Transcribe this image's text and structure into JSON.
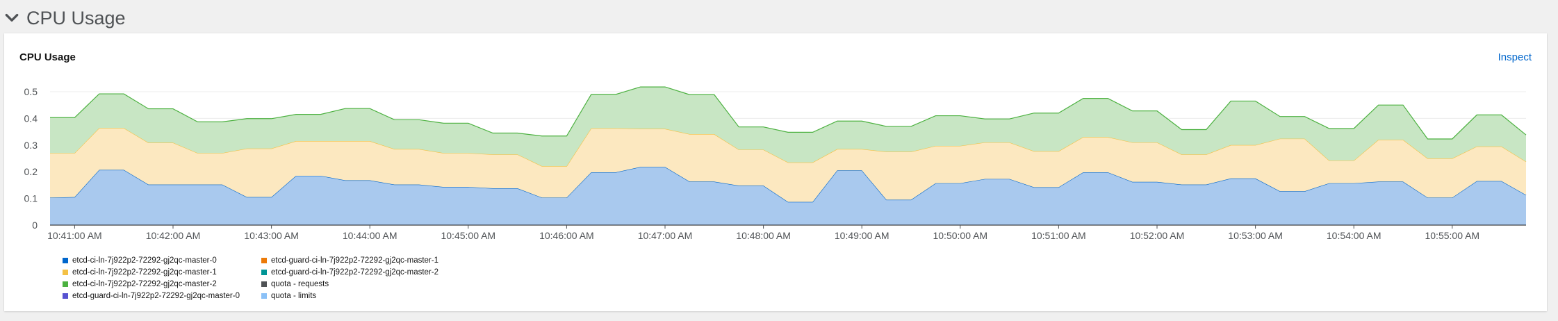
{
  "section": {
    "title": "CPU Usage",
    "icon": "chevron-down-icon"
  },
  "card": {
    "title": "CPU Usage",
    "inspect_label": "Inspect"
  },
  "legend": [
    {
      "label": "etcd-ci-ln-7j922p2-72292-gj2qc-master-0",
      "color": "#0066cc"
    },
    {
      "label": "etcd-guard-ci-ln-7j922p2-72292-gj2qc-master-1",
      "color": "#ec7a08"
    },
    {
      "label": "etcd-ci-ln-7j922p2-72292-gj2qc-master-1",
      "color": "#f4c145"
    },
    {
      "label": "etcd-guard-ci-ln-7j922p2-72292-gj2qc-master-2",
      "color": "#009596"
    },
    {
      "label": "etcd-ci-ln-7j922p2-72292-gj2qc-master-2",
      "color": "#4cb140"
    },
    {
      "label": "quota - requests",
      "color": "#4f5255"
    },
    {
      "label": "etcd-guard-ci-ln-7j922p2-72292-gj2qc-master-0",
      "color": "#5752d1"
    },
    {
      "label": "quota - limits",
      "color": "#8bc1f7"
    }
  ],
  "chart_data": {
    "type": "area",
    "stacked": true,
    "title": "CPU Usage",
    "ylim": [
      0,
      0.5
    ],
    "yticks": [
      0,
      0.1,
      0.2,
      0.3,
      0.4,
      0.5
    ],
    "ytick_labels": [
      "0",
      "0.1",
      "0.2",
      "0.3",
      "0.4",
      "0.5"
    ],
    "xlim": [
      "10:40:45",
      "10:55:45"
    ],
    "xticks": [
      "10:41:00",
      "10:42:00",
      "10:43:00",
      "10:44:00",
      "10:45:00",
      "10:46:00",
      "10:47:00",
      "10:48:00",
      "10:49:00",
      "10:50:00",
      "10:51:00",
      "10:52:00",
      "10:53:00",
      "10:54:00",
      "10:55:00"
    ],
    "xtick_labels": [
      "10:41:00 AM",
      "10:42:00 AM",
      "10:43:00 AM",
      "10:44:00 AM",
      "10:45:00 AM",
      "10:46:00 AM",
      "10:47:00 AM",
      "10:48:00 AM",
      "10:49:00 AM",
      "10:50:00 AM",
      "10:51:00 AM",
      "10:52:00 AM",
      "10:53:00 AM",
      "10:54:00 AM",
      "10:55:00 AM"
    ],
    "x": [
      "10:40:45",
      "10:41:00",
      "10:41:15",
      "10:41:30",
      "10:41:45",
      "10:42:00",
      "10:42:15",
      "10:42:30",
      "10:42:45",
      "10:43:00",
      "10:43:15",
      "10:43:30",
      "10:43:45",
      "10:44:00",
      "10:44:15",
      "10:44:30",
      "10:44:45",
      "10:45:00",
      "10:45:15",
      "10:45:30",
      "10:45:45",
      "10:46:00",
      "10:46:15",
      "10:46:30",
      "10:46:45",
      "10:47:00",
      "10:47:15",
      "10:47:30",
      "10:47:45",
      "10:48:00",
      "10:48:15",
      "10:48:30",
      "10:48:45",
      "10:49:00",
      "10:49:15",
      "10:49:30",
      "10:49:45",
      "10:50:00",
      "10:50:15",
      "10:50:30",
      "10:50:45",
      "10:51:00",
      "10:51:15",
      "10:51:30",
      "10:51:45",
      "10:52:00",
      "10:52:15",
      "10:52:30",
      "10:52:45",
      "10:53:00",
      "10:53:15",
      "10:53:30",
      "10:53:45",
      "10:54:00",
      "10:54:15",
      "10:54:30",
      "10:54:45",
      "10:55:00",
      "10:55:15",
      "10:55:30",
      "10:55:45"
    ],
    "series": [
      {
        "name": "etcd-ci-ln-7j922p2-72292-gj2qc-master-0",
        "color": "#0066cc",
        "fill": "#a9c9ee",
        "values": [
          0.103,
          0.105,
          0.207,
          0.207,
          0.152,
          0.152,
          0.152,
          0.152,
          0.105,
          0.105,
          0.185,
          0.185,
          0.168,
          0.168,
          0.152,
          0.152,
          0.143,
          0.143,
          0.138,
          0.138,
          0.103,
          0.103,
          0.198,
          0.198,
          0.218,
          0.218,
          0.163,
          0.163,
          0.148,
          0.148,
          0.087,
          0.087,
          0.205,
          0.205,
          0.095,
          0.095,
          0.157,
          0.157,
          0.173,
          0.173,
          0.142,
          0.142,
          0.198,
          0.198,
          0.162,
          0.162,
          0.152,
          0.152,
          0.175,
          0.175,
          0.127,
          0.127,
          0.157,
          0.157,
          0.163,
          0.163,
          0.103,
          0.103,
          0.165,
          0.165,
          0.113
        ]
      },
      {
        "name": "etcd-ci-ln-7j922p2-72292-gj2qc-master-1",
        "color": "#f4c145",
        "fill": "#fce8c0",
        "values": [
          0.167,
          0.165,
          0.157,
          0.157,
          0.157,
          0.157,
          0.118,
          0.118,
          0.182,
          0.182,
          0.13,
          0.13,
          0.147,
          0.147,
          0.133,
          0.133,
          0.127,
          0.127,
          0.127,
          0.127,
          0.118,
          0.118,
          0.165,
          0.165,
          0.143,
          0.143,
          0.178,
          0.178,
          0.135,
          0.135,
          0.148,
          0.148,
          0.08,
          0.08,
          0.18,
          0.18,
          0.14,
          0.14,
          0.137,
          0.137,
          0.135,
          0.135,
          0.132,
          0.132,
          0.148,
          0.148,
          0.113,
          0.113,
          0.125,
          0.125,
          0.197,
          0.197,
          0.085,
          0.085,
          0.157,
          0.157,
          0.147,
          0.147,
          0.13,
          0.13,
          0.125
        ]
      },
      {
        "name": "etcd-ci-ln-7j922p2-72292-gj2qc-master-2",
        "color": "#4cb140",
        "fill": "#c8e6c4",
        "values": [
          0.133,
          0.133,
          0.128,
          0.128,
          0.127,
          0.127,
          0.117,
          0.117,
          0.112,
          0.112,
          0.1,
          0.1,
          0.122,
          0.122,
          0.11,
          0.11,
          0.112,
          0.112,
          0.08,
          0.08,
          0.113,
          0.113,
          0.127,
          0.127,
          0.157,
          0.157,
          0.148,
          0.148,
          0.085,
          0.085,
          0.113,
          0.113,
          0.105,
          0.105,
          0.095,
          0.095,
          0.113,
          0.113,
          0.088,
          0.088,
          0.143,
          0.143,
          0.145,
          0.145,
          0.118,
          0.118,
          0.093,
          0.093,
          0.165,
          0.165,
          0.083,
          0.083,
          0.12,
          0.12,
          0.13,
          0.13,
          0.073,
          0.073,
          0.118,
          0.118,
          0.1
        ]
      }
    ]
  }
}
